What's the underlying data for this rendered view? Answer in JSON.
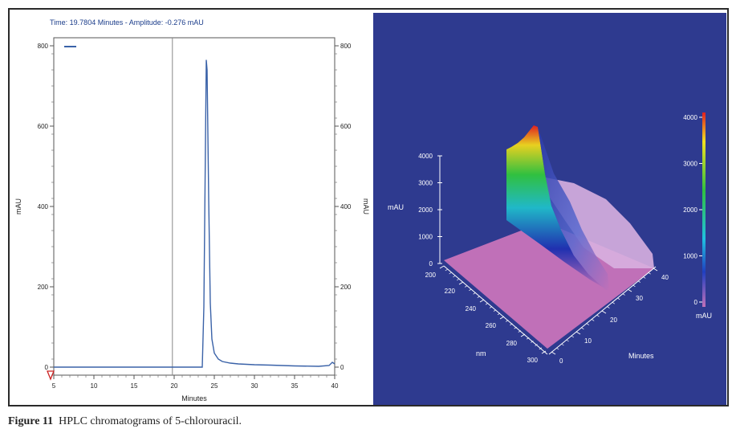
{
  "caption": {
    "label": "Figure 11",
    "text": "HPLC chromatograms of 5-chlorouracil."
  },
  "colors": {
    "trace": "#3a62a8",
    "panel_bg": "#2e3a8f",
    "surface_floor": "#c070b8",
    "cursor_line": "#888888"
  },
  "chart_data": [
    {
      "type": "line",
      "title": "Time:  19.7804 Minutes - Amplitude:  -0.276 mAU",
      "xlabel": "Minutes",
      "ylabel": "mAU",
      "ylabel_right": "mAU",
      "xlim": [
        5,
        40
      ],
      "ylim": [
        -20,
        820
      ],
      "x_ticks": [
        5,
        10,
        15,
        20,
        25,
        30,
        35,
        40
      ],
      "y_ticks": [
        0,
        200,
        400,
        600,
        800
      ],
      "grid": false,
      "cursor_x": 19.7804,
      "series": [
        {
          "x": [
            5,
            10,
            15,
            20,
            23.5,
            23.7,
            23.9,
            24.0,
            24.1,
            24.3,
            24.5,
            24.7,
            25.0,
            25.5,
            26,
            27,
            28,
            30,
            32,
            35,
            38,
            39.3,
            39.7,
            40
          ],
          "y": [
            0,
            0,
            0,
            0,
            0,
            150,
            560,
            765,
            740,
            420,
            160,
            70,
            35,
            20,
            14,
            10,
            8,
            6,
            5,
            3,
            2,
            4,
            12,
            8
          ]
        }
      ]
    },
    {
      "type": "surface3d",
      "zlabel": "mAU",
      "xlabel": "Minutes",
      "ylabel": "nm",
      "z_ticks": [
        "0",
        "1000",
        "2000",
        "3000",
        "4000"
      ],
      "nm_ticks": [
        "200",
        "220",
        "240",
        "260",
        "280",
        "300"
      ],
      "minute_ticks": [
        "0",
        "10",
        "20",
        "30",
        "40"
      ],
      "colorbar": {
        "ticks": [
          "0",
          "1000",
          "2000",
          "3000",
          "4000"
        ],
        "unit": "mAU"
      },
      "peak_mAU": 4000
    }
  ]
}
